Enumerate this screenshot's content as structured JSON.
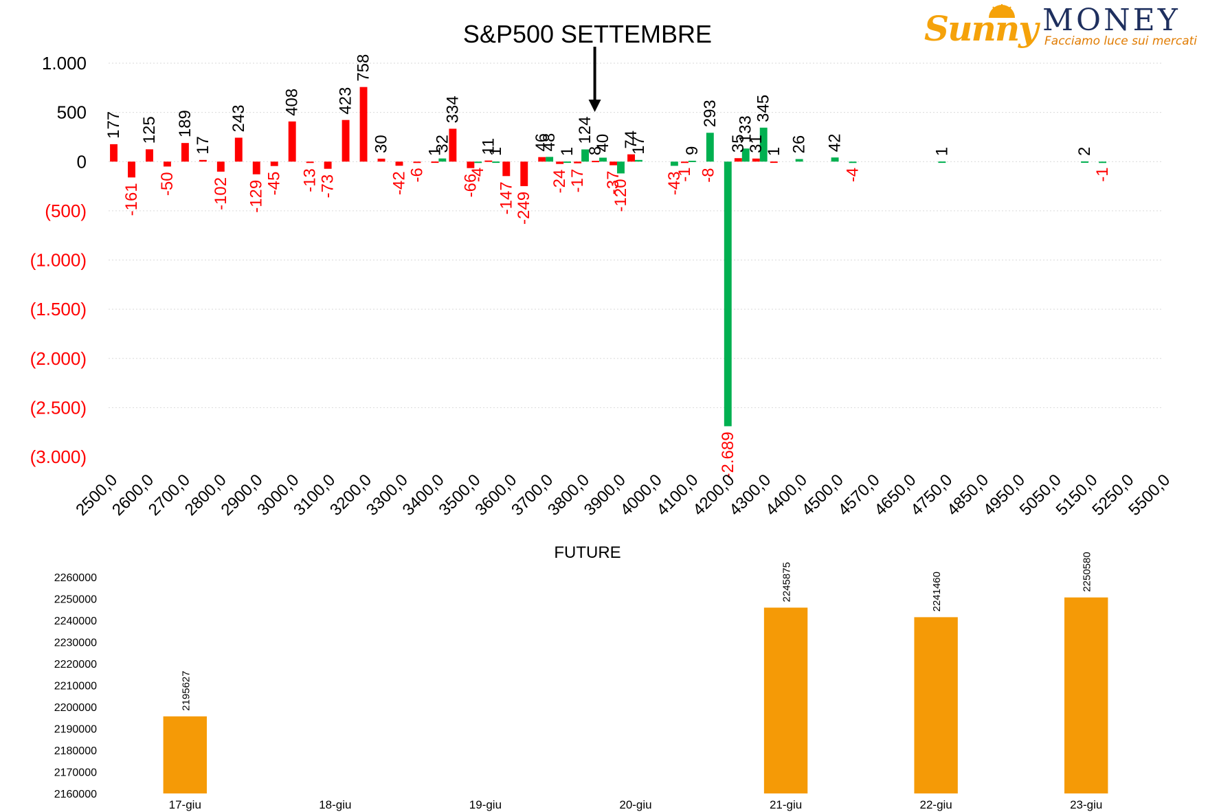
{
  "logo": {
    "brand_left": "Sunny",
    "brand_right": "MONEY",
    "tagline": "Facciamo luce sui mercati"
  },
  "colors": {
    "negative": "#ff0000",
    "positive_red": "#ff0000",
    "green": "#00b050",
    "orange": "#f59a06",
    "text": "#000000",
    "grid": "#d9d9d9"
  },
  "chart_data": [
    {
      "type": "bar",
      "title": "S&P500 SETTEMBRE",
      "xlabel": "",
      "ylabel": "",
      "ylim": [
        -3000,
        1000
      ],
      "y_ticks": [
        {
          "value": 1000,
          "label": "1.000",
          "color": "#000000"
        },
        {
          "value": 500,
          "label": "500",
          "color": "#000000"
        },
        {
          "value": 0,
          "label": "0",
          "color": "#000000"
        },
        {
          "value": -500,
          "label": "(500)",
          "color": "#ff0000"
        },
        {
          "value": -1000,
          "label": "(1.000)",
          "color": "#ff0000"
        },
        {
          "value": -1500,
          "label": "(1.500)",
          "color": "#ff0000"
        },
        {
          "value": -2000,
          "label": "(2.000)",
          "color": "#ff0000"
        },
        {
          "value": -2500,
          "label": "(2.500)",
          "color": "#ff0000"
        },
        {
          "value": -3000,
          "label": "(3.000)",
          "color": "#ff0000"
        }
      ],
      "categories": [
        "2500,0",
        "2550,0",
        "2600,0",
        "2650,0",
        "2700,0",
        "2750,0",
        "2800,0",
        "2850,0",
        "2900,0",
        "2950,0",
        "3000,0",
        "3050,0",
        "3100,0",
        "3150,0",
        "3200,0",
        "3250,0",
        "3300,0",
        "3350,0",
        "3400,0",
        "3450,0",
        "3500,0",
        "3550,0",
        "3600,0",
        "3650,0",
        "3700,0",
        "3750,0",
        "3800,0",
        "3850,0",
        "3900,0",
        "3950,0",
        "4000,0",
        "4050,0",
        "4100,0",
        "4150,0",
        "4200,0",
        "4250,0",
        "4300,0",
        "4350,0",
        "4400,0",
        "4450,0",
        "4500,0",
        "4535,0",
        "4570,0",
        "4610,0",
        "4650,0",
        "4700,0",
        "4750,0",
        "4800,0",
        "4850,0",
        "4900,0",
        "4950,0",
        "5000,0",
        "5050,0",
        "5100,0",
        "5150,0",
        "5200,0",
        "5250,0",
        "5350,0",
        "5500,0"
      ],
      "x_tick_labels": [
        "2500,0",
        "2600,0",
        "2700,0",
        "2800,0",
        "2900,0",
        "3000,0",
        "3100,0",
        "3200,0",
        "3300,0",
        "3400,0",
        "3500,0",
        "3600,0",
        "3700,0",
        "3800,0",
        "3900,0",
        "4000,0",
        "4100,0",
        "4200,0",
        "4300,0",
        "4400,0",
        "4500,0",
        "4570,0",
        "4650,0",
        "4750,0",
        "4850,0",
        "4950,0",
        "5050,0",
        "5150,0",
        "5250,0",
        "5500,0"
      ],
      "marker": {
        "label_category": "3850,0"
      },
      "series": [
        {
          "color": "#ff0000",
          "values": [
            177,
            -161,
            125,
            -50,
            189,
            17,
            -102,
            243,
            -129,
            -45,
            408,
            -13,
            -73,
            423,
            758,
            30,
            -42,
            -6,
            1,
            334,
            -66,
            11,
            -147,
            -249,
            46,
            -24,
            -17,
            8,
            -37,
            74,
            null,
            null,
            -1,
            null,
            null,
            35,
            31,
            1,
            null,
            null,
            null,
            null,
            null,
            null,
            null,
            null,
            null,
            null,
            null,
            null,
            null,
            null,
            null,
            null,
            null,
            null,
            null,
            null,
            null
          ],
          "labels": [
            "177",
            "-161",
            "125",
            "-50",
            "189",
            "17",
            "-102",
            "243",
            "-129",
            "-45",
            "408",
            "-13",
            "-73",
            "423",
            "758",
            "30",
            "-42",
            "-6",
            "1",
            "334",
            "-66",
            "11",
            "-147",
            "-249",
            "46",
            "-24",
            "-17",
            "8",
            "-37",
            "74",
            "",
            "",
            "-1",
            "",
            "",
            "35",
            "31",
            "1",
            "",
            "",
            "",
            "",
            "",
            "",
            "",
            "",
            "",
            "",
            "",
            "",
            "",
            "",
            "",
            "",
            "",
            "",
            "",
            "",
            ""
          ]
        },
        {
          "color": "#00b050",
          "values": [
            null,
            null,
            null,
            null,
            null,
            null,
            null,
            null,
            null,
            null,
            null,
            null,
            null,
            null,
            null,
            null,
            null,
            null,
            32,
            null,
            -4,
            1,
            null,
            null,
            48,
            1,
            124,
            40,
            -120,
            17,
            null,
            -43,
            9,
            293,
            -2689,
            133,
            345,
            null,
            26,
            null,
            42,
            -4,
            null,
            null,
            null,
            null,
            1,
            null,
            null,
            null,
            null,
            null,
            null,
            null,
            2,
            -1,
            null,
            null,
            null
          ],
          "labels": [
            "",
            "",
            "",
            "",
            "",
            "",
            "",
            "",
            "",
            "",
            "",
            "",
            "",
            "",
            "",
            "",
            "",
            "",
            "32",
            "",
            "-4",
            "1",
            "",
            "",
            "48",
            "1",
            "124",
            "40",
            "-120",
            "17",
            "",
            "-43",
            "9",
            "293",
            "-2.689",
            "133",
            "345",
            "",
            "26",
            "",
            "42",
            "-4",
            "",
            "",
            "",
            "",
            "1",
            "",
            "",
            "",
            "",
            "",
            "",
            "",
            "2",
            "-1",
            "",
            "",
            ""
          ]
        }
      ],
      "extra_red_labels": [
        {
          "category": "4150,0",
          "label": "-8"
        }
      ],
      "grid": true
    },
    {
      "type": "bar",
      "title": "FUTURE",
      "xlabel": "",
      "ylabel": "",
      "ylim": [
        2160000,
        2260000
      ],
      "y_ticks": [
        2160000,
        2170000,
        2180000,
        2190000,
        2200000,
        2210000,
        2220000,
        2230000,
        2240000,
        2250000,
        2260000
      ],
      "categories": [
        "17-giu",
        "18-giu",
        "19-giu",
        "20-giu",
        "21-giu",
        "22-giu",
        "23-giu"
      ],
      "values": [
        2195627,
        null,
        null,
        null,
        2245875,
        2241460,
        2250580
      ],
      "labels": [
        "2195627",
        "",
        "",
        "",
        "2245875",
        "2241460",
        "2250580"
      ],
      "color": "#f59a06",
      "grid": false
    }
  ]
}
